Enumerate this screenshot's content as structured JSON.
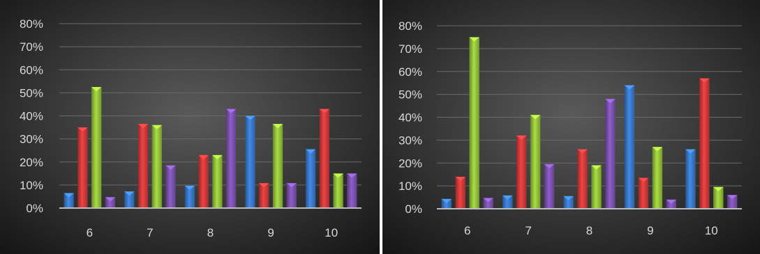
{
  "colors": {
    "series": [
      "#3a78c9",
      "#d23a3a",
      "#93c13a",
      "#7c52b0"
    ],
    "gridline": "#6a6a6a",
    "baseline": "#bcbcbc",
    "text": "#d9d9d9"
  },
  "chart_data": [
    {
      "type": "bar",
      "categories": [
        "6",
        "7",
        "8",
        "9",
        "10"
      ],
      "ylim": [
        0,
        0.8
      ],
      "yticks": [
        "0%",
        "10%",
        "20%",
        "30%",
        "40%",
        "50%",
        "60%",
        "70%",
        "80%"
      ],
      "grid": true,
      "series": [
        {
          "values": [
            0.065,
            0.072,
            0.097,
            0.4,
            0.255
          ]
        },
        {
          "values": [
            0.35,
            0.365,
            0.23,
            0.108,
            0.43
          ]
        },
        {
          "values": [
            0.525,
            0.36,
            0.23,
            0.365,
            0.15
          ]
        },
        {
          "values": [
            0.047,
            0.185,
            0.43,
            0.108,
            0.15
          ]
        }
      ]
    },
    {
      "type": "bar",
      "categories": [
        "6",
        "7",
        "8",
        "9",
        "10"
      ],
      "ylim": [
        0,
        0.8
      ],
      "yticks": [
        "0%",
        "10%",
        "20%",
        "30%",
        "40%",
        "50%",
        "60%",
        "70%",
        "80%"
      ],
      "grid": true,
      "series": [
        {
          "values": [
            0.043,
            0.058,
            0.055,
            0.54,
            0.26
          ]
        },
        {
          "values": [
            0.14,
            0.32,
            0.26,
            0.135,
            0.57
          ]
        },
        {
          "values": [
            0.75,
            0.41,
            0.19,
            0.27,
            0.095
          ]
        },
        {
          "values": [
            0.047,
            0.195,
            0.48,
            0.04,
            0.06
          ]
        }
      ]
    }
  ]
}
